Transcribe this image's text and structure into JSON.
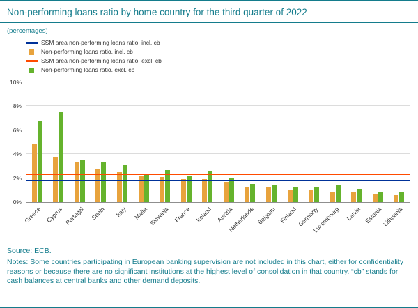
{
  "header": {
    "title": "Non-performing loans ratio by home country for the third quarter of 2022",
    "subtitle": "(percentages)"
  },
  "legend": [
    {
      "label": "SSM area non-performing loans ratio, incl. cb",
      "type": "line",
      "color": "#003299"
    },
    {
      "label": "Non-performing loans ratio, incl. cb",
      "type": "bar",
      "color": "#e8a33d"
    },
    {
      "label": "SSM area non-performing loans ratio, excl. cb",
      "type": "line",
      "color": "#ff4b00"
    },
    {
      "label": "Non-performing loans ratio, excl. cb",
      "type": "bar",
      "color": "#65b32d"
    }
  ],
  "chart_data": {
    "type": "bar",
    "title": "Non-performing loans ratio by home country for the third quarter of 2022",
    "xlabel": "",
    "ylabel": "percentages",
    "ylim": [
      0,
      10
    ],
    "yticks": [
      "0%",
      "2%",
      "4%",
      "6%",
      "8%",
      "10%"
    ],
    "grid": true,
    "legend_position": "top-left",
    "categories": [
      "Greece",
      "Cyprus",
      "Portugal",
      "Spain",
      "Italy",
      "Malta",
      "Slovenia",
      "France",
      "Ireland",
      "Austria",
      "Netherlands",
      "Belgium",
      "Finland",
      "Germany",
      "Luxembourg",
      "Latvia",
      "Estonia",
      "Lithuania"
    ],
    "series": [
      {
        "name": "Non-performing loans ratio, incl. cb",
        "color": "#e8a33d",
        "values": [
          4.9,
          3.8,
          3.4,
          2.8,
          2.5,
          2.2,
          2.1,
          1.9,
          1.9,
          1.7,
          1.2,
          1.2,
          1.0,
          1.0,
          0.9,
          0.9,
          0.7,
          0.6
        ]
      },
      {
        "name": "Non-performing loans ratio, excl. cb",
        "color": "#65b32d",
        "values": [
          6.8,
          7.5,
          3.5,
          3.3,
          3.1,
          2.3,
          2.7,
          2.2,
          2.6,
          2.0,
          1.5,
          1.4,
          1.2,
          1.3,
          1.4,
          1.1,
          0.8,
          0.9
        ]
      }
    ],
    "reference_lines": [
      {
        "name": "SSM area non-performing loans ratio, incl. cb",
        "value": 1.8,
        "color": "#003299"
      },
      {
        "name": "SSM area non-performing loans ratio, excl. cb",
        "value": 2.3,
        "color": "#ff4b00"
      }
    ]
  },
  "footer": {
    "source": "Source: ECB.",
    "notes": "Notes: Some countries participating in European banking supervision are not included in this chart, either for confidentiality reasons or because there are no significant institutions at the highest level of consolidation in that country. “cb” stands for cash balances at central banks and other demand deposits."
  },
  "colors": {
    "accent_teal": "#147c8c",
    "ssm_incl_line": "#003299",
    "npl_incl_bar": "#e8a33d",
    "ssm_excl_line": "#ff4b00",
    "npl_excl_bar": "#65b32d"
  }
}
